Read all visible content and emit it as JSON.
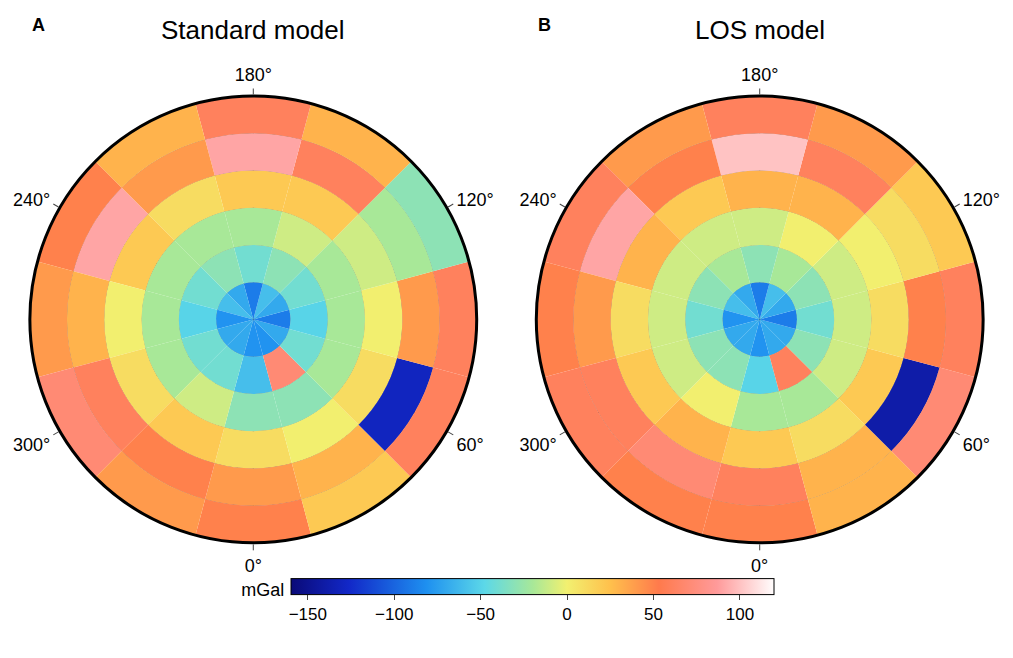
{
  "chart_data": [
    {
      "type": "polar_heatmap",
      "title": "Standard model",
      "panel": "A",
      "theta": [
        0,
        30,
        60,
        90,
        120,
        150,
        180,
        210,
        240,
        270,
        300,
        330
      ],
      "r_edges": [
        0,
        5,
        10,
        15,
        20,
        25,
        30
      ],
      "rlim": [
        0,
        30
      ],
      "thetaticks": [
        {
          "value": 0,
          "label": "0°"
        },
        {
          "value": 60,
          "label": "60°"
        },
        {
          "value": 120,
          "label": "120°"
        },
        {
          "value": 180,
          "label": "180°"
        },
        {
          "value": 240,
          "label": "240°"
        },
        {
          "value": 300,
          "label": "300°"
        }
      ],
      "values": [
        [
          -80,
          -60,
          -30,
          10,
          40,
          50
        ],
        [
          -80,
          70,
          -30,
          0,
          30,
          20
        ],
        [
          -70,
          -40,
          -20,
          10,
          -130,
          60
        ],
        [
          -90,
          -50,
          -20,
          0,
          40,
          60
        ],
        [
          -70,
          -40,
          -20,
          -10,
          -20,
          -30
        ],
        [
          -60,
          -30,
          -10,
          20,
          60,
          30
        ],
        [
          -90,
          -40,
          -20,
          20,
          90,
          60
        ],
        [
          -70,
          -30,
          -20,
          10,
          40,
          30
        ],
        [
          -60,
          -40,
          -20,
          20,
          90,
          50
        ],
        [
          -80,
          -50,
          -20,
          0,
          30,
          40
        ],
        [
          -70,
          -40,
          -20,
          10,
          60,
          70
        ],
        [
          -70,
          -40,
          -10,
          20,
          50,
          40
        ]
      ],
      "colorbar": {
        "range": [
          -160,
          120
        ],
        "ticks": [
          -150,
          -100,
          -50,
          0,
          50,
          100
        ],
        "label": "mGal"
      }
    },
    {
      "type": "polar_heatmap",
      "title": "LOS model",
      "panel": "B",
      "theta": [
        0,
        30,
        60,
        90,
        120,
        150,
        180,
        210,
        240,
        270,
        300,
        330
      ],
      "r_edges": [
        0,
        5,
        10,
        15,
        20,
        25,
        30
      ],
      "rlim": [
        0,
        30
      ],
      "thetaticks": [
        {
          "value": 0,
          "label": "0°"
        },
        {
          "value": 60,
          "label": "60°"
        },
        {
          "value": 120,
          "label": "120°"
        },
        {
          "value": 180,
          "label": "180°"
        },
        {
          "value": 240,
          "label": "240°"
        },
        {
          "value": 300,
          "label": "300°"
        }
      ],
      "values": [
        [
          -80,
          -50,
          -20,
          20,
          60,
          50
        ],
        [
          -70,
          60,
          -20,
          10,
          30,
          30
        ],
        [
          -70,
          -30,
          -10,
          20,
          -140,
          70
        ],
        [
          -90,
          -40,
          -10,
          10,
          50,
          60
        ],
        [
          -70,
          -30,
          -10,
          0,
          10,
          20
        ],
        [
          -60,
          -20,
          0,
          30,
          60,
          40
        ],
        [
          -90,
          -30,
          -10,
          30,
          100,
          60
        ],
        [
          -70,
          -20,
          -10,
          20,
          50,
          40
        ],
        [
          -60,
          -30,
          -10,
          30,
          90,
          60
        ],
        [
          -80,
          -40,
          -10,
          10,
          40,
          50
        ],
        [
          -70,
          -30,
          -10,
          20,
          60,
          60
        ],
        [
          -70,
          -30,
          0,
          30,
          70,
          50
        ]
      ],
      "colorbar": {
        "range": [
          -160,
          120
        ],
        "ticks": [
          -150,
          -100,
          -50,
          0,
          50,
          100
        ],
        "label": "mGal"
      }
    }
  ]
}
